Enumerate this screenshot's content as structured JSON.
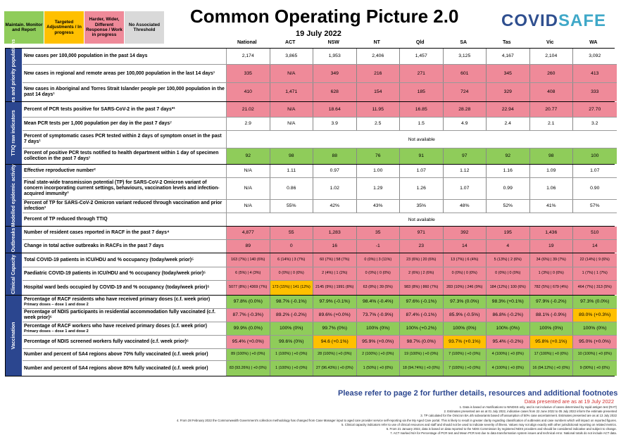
{
  "legend": [
    {
      "label": "Maintain. Monitor and Report",
      "color": "#8fcc5a"
    },
    {
      "label": "Targeted Adjustments / In progress",
      "color": "#ffc000"
    },
    {
      "label": "Harder, Wider, Different Response / Work in progress",
      "color": "#ef8a99"
    },
    {
      "label": "No Associated Threshold",
      "color": "#d9d9d9"
    }
  ],
  "title": "Common Operating Picture 2.0",
  "date": "19 July 2022",
  "logo": {
    "part1": "COVID",
    "part2": "SAFE"
  },
  "jurisdictions": [
    "National",
    "ACT",
    "NSW",
    "NT",
    "Qld",
    "SA",
    "Tas",
    "Vic",
    "WA"
  ],
  "groups": [
    {
      "label": "Cases and priority populations",
      "rows": [
        {
          "label": "New cases per 100,000 population in the past 14 days",
          "cells": [
            [
              "2,174",
              "w"
            ],
            [
              "3,865",
              "w"
            ],
            [
              "1,953",
              "w"
            ],
            [
              "2,406",
              "w"
            ],
            [
              "1,457",
              "w"
            ],
            [
              "3,125",
              "w"
            ],
            [
              "4,167",
              "w"
            ],
            [
              "2,104",
              "w"
            ],
            [
              "3,092",
              "w"
            ]
          ]
        },
        {
          "label": "New cases in regional and remote areas per 100,000 population in the last 14 days¹",
          "cells": [
            [
              "335",
              "p"
            ],
            [
              "N/A",
              "p"
            ],
            [
              "349",
              "p"
            ],
            [
              "216",
              "p"
            ],
            [
              "271",
              "p"
            ],
            [
              "601",
              "p"
            ],
            [
              "345",
              "p"
            ],
            [
              "260",
              "p"
            ],
            [
              "413",
              "p"
            ]
          ]
        },
        {
          "label": "New cases in Aboriginal and Torres Strait Islander people per 100,000 population in the past 14 days¹",
          "cells": [
            [
              "410",
              "p"
            ],
            [
              "1,471",
              "p"
            ],
            [
              "628",
              "p"
            ],
            [
              "154",
              "p"
            ],
            [
              "185",
              "p"
            ],
            [
              "724",
              "p"
            ],
            [
              "329",
              "p"
            ],
            [
              "408",
              "p"
            ],
            [
              "333",
              "p"
            ]
          ]
        }
      ]
    },
    {
      "label": "TTIQ raw indicators",
      "rows": [
        {
          "label": "Percent of PCR tests positive for SARS-CoV-2 in the past 7 days*¹",
          "cells": [
            [
              "21.02",
              "p"
            ],
            [
              "N/A",
              "p"
            ],
            [
              "18.64",
              "p"
            ],
            [
              "11.95",
              "p"
            ],
            [
              "16.85",
              "p"
            ],
            [
              "28.28",
              "p"
            ],
            [
              "22.94",
              "p"
            ],
            [
              "20.77",
              "p"
            ],
            [
              "27.70",
              "p"
            ]
          ]
        },
        {
          "label": "Mean PCR tests per 1,000 population per day in the past 7 days⁷",
          "cells": [
            [
              "2.9",
              "w"
            ],
            [
              "N/A",
              "w"
            ],
            [
              "3.9",
              "w"
            ],
            [
              "2.5",
              "w"
            ],
            [
              "1.5",
              "w"
            ],
            [
              "4.9",
              "w"
            ],
            [
              "2.4",
              "w"
            ],
            [
              "2.1",
              "w"
            ],
            [
              "3.2",
              "w"
            ]
          ]
        },
        {
          "label": "Percent of symptomatic cases PCR tested within 2 days of symptom onset in the past 7 days¹",
          "na": "Not available"
        },
        {
          "label": "Percent of positive PCR tests notified to health department within 1 day of specimen collection in the past 7 days¹",
          "cells": [
            [
              "92",
              "g"
            ],
            [
              "98",
              "g"
            ],
            [
              "88",
              "g"
            ],
            [
              "76",
              "g"
            ],
            [
              "91",
              "g"
            ],
            [
              "97",
              "g"
            ],
            [
              "92",
              "g"
            ],
            [
              "98",
              "g"
            ],
            [
              "100",
              "g"
            ]
          ]
        }
      ]
    },
    {
      "label": "Modelled epidemic activity",
      "rows": [
        {
          "label": "Effective reproductive number²",
          "cells": [
            [
              "N/A",
              "w"
            ],
            [
              "1.11",
              "w"
            ],
            [
              "0.97",
              "w"
            ],
            [
              "1.00",
              "w"
            ],
            [
              "1.07",
              "w"
            ],
            [
              "1.12",
              "w"
            ],
            [
              "1.16",
              "w"
            ],
            [
              "1.09",
              "w"
            ],
            [
              "1.07",
              "w"
            ]
          ]
        },
        {
          "label": "Final state-wide transmission potential (TP) for SARS-CoV-2 Omicron variant of concern incorporating current settings, behaviours, vaccination levels and infection-acquired immunity³",
          "cells": [
            [
              "N/A",
              "w"
            ],
            [
              "0.86",
              "w"
            ],
            [
              "1.02",
              "w"
            ],
            [
              "1.29",
              "w"
            ],
            [
              "1.26",
              "w"
            ],
            [
              "1.07",
              "w"
            ],
            [
              "0.99",
              "w"
            ],
            [
              "1.06",
              "w"
            ],
            [
              "0.90",
              "w"
            ]
          ]
        },
        {
          "label": "Percent of TP for SARS-CoV-2 Omicron variant reduced through vaccination and prior infection³",
          "cells": [
            [
              "N/A",
              "w"
            ],
            [
              "55%",
              "w"
            ],
            [
              "42%",
              "w"
            ],
            [
              "43%",
              "w"
            ],
            [
              "35%",
              "w"
            ],
            [
              "48%",
              "w"
            ],
            [
              "52%",
              "w"
            ],
            [
              "41%",
              "w"
            ],
            [
              "57%",
              "w"
            ]
          ]
        },
        {
          "label": "Percent of TP reduced through TTIQ",
          "na": "Not available"
        }
      ]
    },
    {
      "label": "Outbreaks",
      "rows": [
        {
          "label": "Number of resident cases reported in RACF in the past 7 days⁴",
          "cells": [
            [
              "4,877",
              "p"
            ],
            [
              "55",
              "p"
            ],
            [
              "1,283",
              "p"
            ],
            [
              "35",
              "p"
            ],
            [
              "971",
              "p"
            ],
            [
              "392",
              "p"
            ],
            [
              "195",
              "p"
            ],
            [
              "1,436",
              "p"
            ],
            [
              "510",
              "p"
            ]
          ]
        },
        {
          "label": "Change in total active outbreaks in RACFs in the past 7 days",
          "cells": [
            [
              "89",
              "p"
            ],
            [
              "0",
              "p"
            ],
            [
              "16",
              "p"
            ],
            [
              "-1",
              "p"
            ],
            [
              "23",
              "p"
            ],
            [
              "14",
              "p"
            ],
            [
              "4",
              "p"
            ],
            [
              "19",
              "p"
            ],
            [
              "14",
              "p"
            ]
          ]
        }
      ]
    },
    {
      "label": "Clinical Capacity",
      "rows": [
        {
          "label": "Total COVID-19 patients in ICU/HDU and % occupancy (today/week prior)⁵",
          "small": true,
          "cells": [
            [
              "163 (7%) | 140 (6%)",
              "p"
            ],
            [
              "6 (14%) | 3 (7%)",
              "p"
            ],
            [
              "60 (7%) | 58 (7%)",
              "p"
            ],
            [
              "0 (0%) | 3 (11%)",
              "p"
            ],
            [
              "23 (6%) | 20 (6%)",
              "p"
            ],
            [
              "13 (7%) | 6 (4%)",
              "p"
            ],
            [
              "5 (13%) | 2 (6%)",
              "p"
            ],
            [
              "34 (6%) | 39 (7%)",
              "p"
            ],
            [
              "22 (14%) | 9 (6%)",
              "p"
            ]
          ]
        },
        {
          "label": "Paediatric COVID-19 patients in ICU/HDU and % occupancy (today/week prior)⁵",
          "small": true,
          "cells": [
            [
              "6 (5%) | 4 (3%)",
              "p"
            ],
            [
              "0 (0%) | 0 (0%)",
              "p"
            ],
            [
              "2 (4%) | 1 (2%)",
              "p"
            ],
            [
              "0 (0%) | 0 (0%)",
              "p"
            ],
            [
              "2 (6%) | 2 (6%)",
              "p"
            ],
            [
              "0 (0%) | 0 (0%)",
              "p"
            ],
            [
              "0 (0%) | 0 (0%)",
              "p"
            ],
            [
              "1 (3%) | 0 (0%)",
              "p"
            ],
            [
              "1 (7%) | 1 (7%)",
              "p"
            ]
          ]
        },
        {
          "label": "Hospital ward beds occupied by COVID-19 and % occupancy (today/week prior)⁵",
          "small": true,
          "cells": [
            [
              "5077 (8%) | 4369 (7%)",
              "p"
            ],
            [
              "173 (15%) | 141 (12%)",
              "y"
            ],
            [
              "2145 (9%) | 1991 (8%)",
              "p"
            ],
            [
              "63 (8%) | 39 (5%)",
              "p"
            ],
            [
              "983 (8%) | 860 (7%)",
              "p"
            ],
            [
              "283 (10%) | 246 (9%)",
              "p"
            ],
            [
              "184 (12%) | 100 (6%)",
              "p"
            ],
            [
              "782 (5%) | 679 (4%)",
              "p"
            ],
            [
              "464 (7%) | 313 (5%)",
              "p"
            ]
          ]
        }
      ]
    },
    {
      "label": "Vaccination",
      "rows": [
        {
          "label": "Percentage of RACF residents who have received primary doses (c.f. week prior)",
          "sub": "Primary doses – dose 1 and dose 2",
          "cells": [
            [
              "97.8% (0.0%)",
              "g"
            ],
            [
              "98.7% (-0.1%)",
              "g"
            ],
            [
              "97.9% (-0.1%)",
              "g"
            ],
            [
              "98.4% (-0.4%)",
              "g"
            ],
            [
              "97.6% (-0.1%)",
              "g"
            ],
            [
              "97.3% (0.0%)",
              "g"
            ],
            [
              "98.3% (+0.1%)",
              "g"
            ],
            [
              "97.9% (-0.2%)",
              "g"
            ],
            [
              "97.3% (0.0%)",
              "g"
            ]
          ]
        },
        {
          "label": "Percentage of NDIS participants in residential accommodation fully vaccinated (c.f. week prior)⁶",
          "cells": [
            [
              "87.7% (-0.3%)",
              "p"
            ],
            [
              "89.2% (-0.2%)",
              "p"
            ],
            [
              "89.6% (+0.0%)",
              "p"
            ],
            [
              "73.7% (-0.9%)",
              "p"
            ],
            [
              "87.4% (-0.1%)",
              "p"
            ],
            [
              "85.9% (-0.5%)",
              "p"
            ],
            [
              "86.8% (-0.2%)",
              "p"
            ],
            [
              "88.1% (-0.9%)",
              "p"
            ],
            [
              "89.0% (+0.3%)",
              "y"
            ]
          ]
        },
        {
          "label": "Percentage of RACF workers who have received primary doses (c.f. week prior)",
          "sub": "Primary doses – dose 1 and dose 2",
          "cells": [
            [
              "99.9% (0.0%)",
              "g"
            ],
            [
              "100% (0%)",
              "g"
            ],
            [
              "99.7% (0%)",
              "g"
            ],
            [
              "100% (0%)",
              "g"
            ],
            [
              "100% (+0.2%)",
              "g"
            ],
            [
              "100% (0%)",
              "g"
            ],
            [
              "100% (0%)",
              "g"
            ],
            [
              "100% (0%)",
              "g"
            ],
            [
              "100% (0%)",
              "g"
            ]
          ]
        },
        {
          "label": "Percentage of NDIS screened workers fully vaccinated (c.f. week prior)⁶",
          "cells": [
            [
              "95.4% (+0.0%)",
              "p"
            ],
            [
              "99.6% (0%)",
              "g"
            ],
            [
              "94.6 (+0.1%)",
              "y"
            ],
            [
              "95.9% (+0.0%)",
              "p"
            ],
            [
              "98.7% (0.0%)",
              "p"
            ],
            [
              "93.7% (+0.1%)",
              "y"
            ],
            [
              "95.4% (-0.2%)",
              "p"
            ],
            [
              "95.8% (+0.1%)",
              "y"
            ],
            [
              "95.0% (+0.0%)",
              "p"
            ]
          ]
        },
        {
          "label": "Number and percent of SA4 regions above 70% fully vaccinated (c.f. week prior)",
          "small": true,
          "cells": [
            [
              "89 (100%) | +0 (0%)",
              "g"
            ],
            [
              "1 (100%) | +0 (0%)",
              "g"
            ],
            [
              "28 (100%) | +0 (0%)",
              "g"
            ],
            [
              "2 (100%) | +0 (0%)",
              "g"
            ],
            [
              "19 (100%) | +0 (0%)",
              "g"
            ],
            [
              "7 (100%) | +0 (0%)",
              "g"
            ],
            [
              "4 (100%) | +0 (0%)",
              "g"
            ],
            [
              "17 (100%) | +0 (0%)",
              "g"
            ],
            [
              "10 (100%) | +0 (0%)",
              "g"
            ]
          ]
        },
        {
          "label": "Number and percent of SA4 regions above 80% fully vaccinated (c.f. week prior)",
          "small": true,
          "cells": [
            [
              "83 (93.26%) | +0 (0%)",
              "g"
            ],
            [
              "1 (100%) | +0 (0%)",
              "g"
            ],
            [
              "27 (96.43%) | +0 (0%)",
              "g"
            ],
            [
              "1 (50%) | +0 (0%)",
              "g"
            ],
            [
              "18 (94.74%) | +0 (0%)",
              "g"
            ],
            [
              "7 (100%) | +0 (0%)",
              "g"
            ],
            [
              "4 (100%) | +0 (0%)",
              "g"
            ],
            [
              "16 (94.12%) | +0 (0%)",
              "g"
            ],
            [
              "9 (90%) | +0 (0%)",
              "g"
            ]
          ]
        }
      ]
    }
  ],
  "refer_text": "Please refer to page 2 for further details, resources and additional footnotes",
  "as_at": "Data presented are as at 19 July 2022",
  "footnotes": [
    "1. Data is based on Notifications to NINDSS only, and is not inclusive of cases determined by rapid antigen test (RAT)",
    "2. Estimates presented are as at 01 July 2022, indicative cases from 22 June 2022 to 05 July 2022 inform the estimate presented",
    "3. TP calculated for the Omicron BA.4/5 subvariants based off assumption of 50% case ascertainment. Estimates presented are as at 13 July 2022",
    "4. From 28 February 2022 the Commonwealth Government's collection methodology has changed from Case Manager input to aged care provider service self-reporting via the My Aged Care portal. This is likely to result in greater clarity regarding classification of outbreaks and case numbers which will impact on reported figures.",
    "5. Clinical capacity indicators refer to use of clinical resources and staff and should not be used to indicate severity of illness. Values may not align exactly with other jurisdictional reporting on related metrics.",
    "6. From 21 January 2022, data is based on data reported to the NDIS Commission by registered NDIS providers and should be considered indicative and subject to change.",
    "7. ACT marked N/A for Percentage of PCR test and Mean PCR test due to data transformation system issues and technical error. National totals do not include ACT data."
  ]
}
